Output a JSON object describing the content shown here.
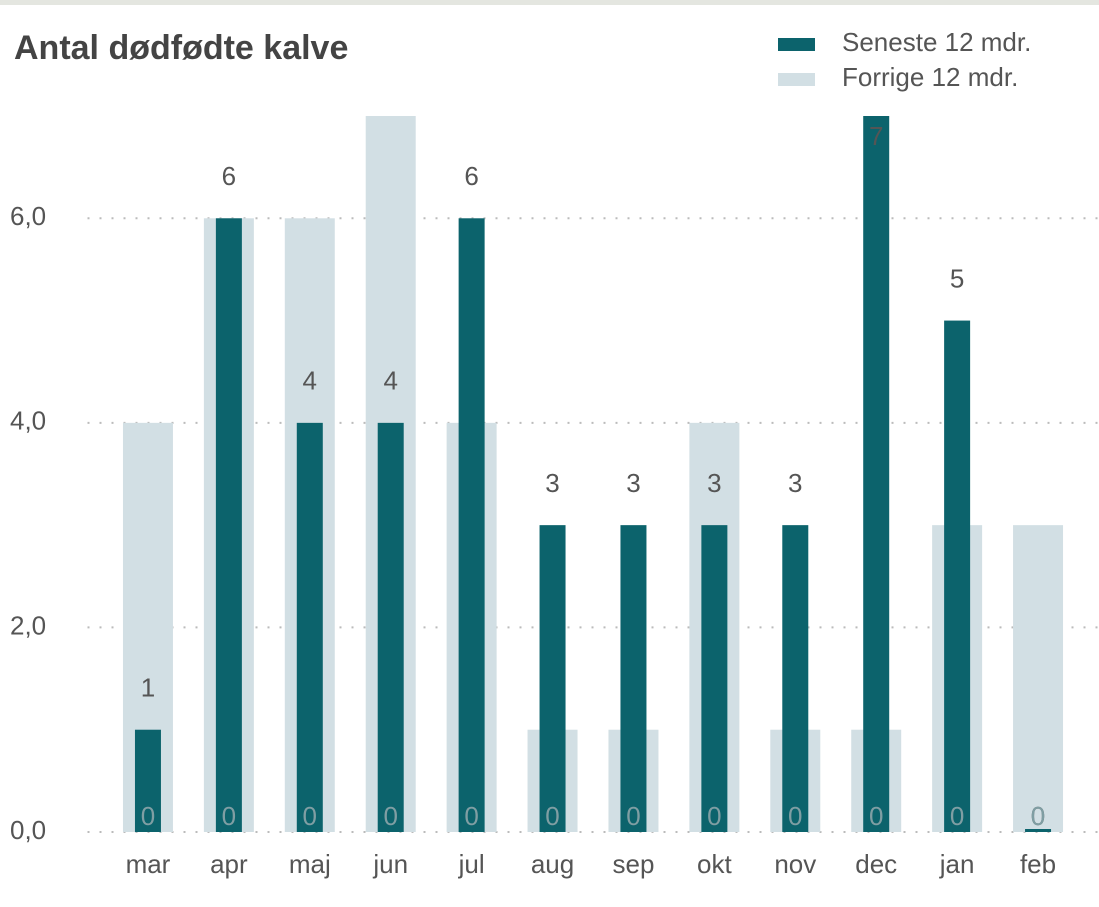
{
  "chart_data": {
    "type": "bar",
    "title": "Antal dødfødte kalve",
    "categories": [
      "mar",
      "apr",
      "maj",
      "jun",
      "jul",
      "aug",
      "sep",
      "okt",
      "nov",
      "dec",
      "jan",
      "feb"
    ],
    "series": [
      {
        "name": "Forrige 12 mdr.",
        "color": "#d2dfe4",
        "values": [
          4,
          6,
          6,
          7,
          4,
          1,
          1,
          4,
          1,
          1,
          3,
          3
        ]
      },
      {
        "name": "Seneste 12 mdr.",
        "color": "#0c636c",
        "values": [
          1,
          6,
          4,
          4,
          6,
          3,
          3,
          3,
          3,
          7,
          5,
          0
        ]
      },
      {
        "color": "#7f9ea3",
        "values": [
          0,
          0,
          0,
          0,
          0,
          0,
          0,
          0,
          0,
          0,
          0,
          0
        ]
      }
    ],
    "ylim": [
      0,
      7
    ],
    "yticks": [
      {
        "value": 0,
        "label": "0,0"
      },
      {
        "value": 2,
        "label": "2,0"
      },
      {
        "value": 4,
        "label": "4,0"
      },
      {
        "value": 6,
        "label": "6,0"
      }
    ],
    "grid": true,
    "legend": "top-right"
  }
}
